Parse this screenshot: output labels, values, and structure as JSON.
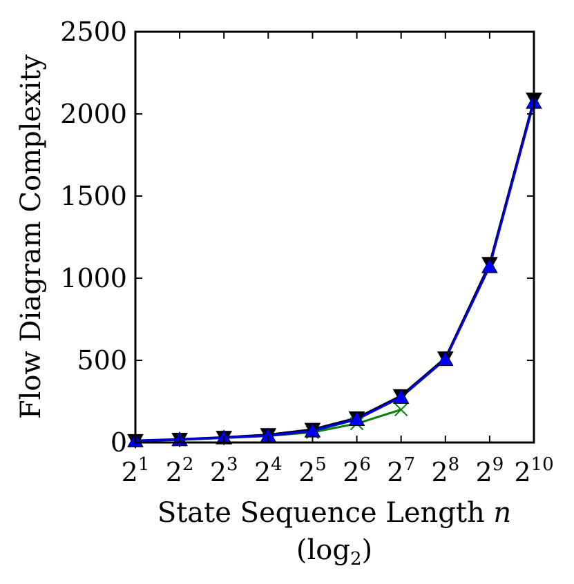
{
  "chart_data": {
    "type": "line",
    "title": "",
    "xlabel": "State Sequence Length",
    "xlabel_var": "n",
    "xlabel_line2_prefix": "(log",
    "xlabel_line2_sub": "2",
    "xlabel_line2_suffix": ")",
    "ylabel": "Flow Diagram Complexity",
    "x_scale": "log2",
    "x_tick_base": "2",
    "x_tick_exponents": [
      "1",
      "2",
      "3",
      "4",
      "5",
      "6",
      "7",
      "8",
      "9",
      "10"
    ],
    "x": [
      2,
      4,
      8,
      16,
      32,
      64,
      128,
      256,
      512,
      1024
    ],
    "ylim": [
      0,
      2500
    ],
    "yticks": [
      "0",
      "500",
      "1000",
      "1500",
      "2000",
      "2500"
    ],
    "grid": false,
    "legend": "none",
    "series": [
      {
        "marker": "x",
        "color": "#008000",
        "values": [
          9,
          16,
          28,
          40,
          62,
          115,
          200,
          null,
          null,
          null
        ]
      },
      {
        "marker": "triangle-down",
        "color": "#000000",
        "values": [
          12,
          20,
          32,
          48,
          80,
          150,
          285,
          515,
          1090,
          2090
        ]
      },
      {
        "marker": "triangle-up",
        "color": "#0000ff",
        "values": [
          10,
          17,
          28,
          40,
          70,
          140,
          275,
          505,
          1070,
          2070
        ]
      }
    ]
  }
}
